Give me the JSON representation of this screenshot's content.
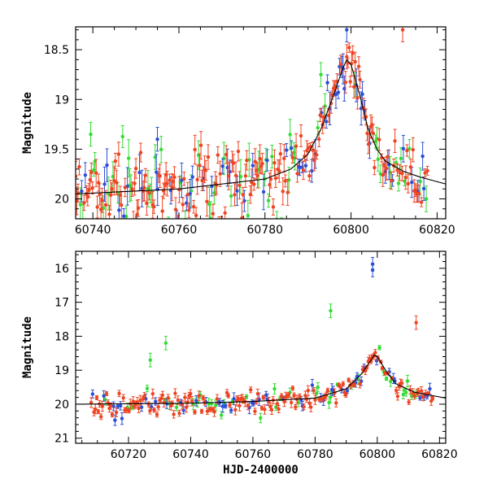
{
  "chart_data": [
    {
      "type": "scatter",
      "panel": "top",
      "title": "",
      "xlabel": "",
      "ylabel": "Magnitude",
      "xlim": [
        60736,
        60822
      ],
      "ylim": [
        20.2,
        18.27
      ],
      "y_inverted": true,
      "xticks": [
        60740,
        60760,
        60780,
        60800,
        60820
      ],
      "yticks": [
        18.5,
        19,
        19.5,
        20
      ],
      "ytick_labels": [
        "18.5",
        "19",
        "19.5",
        "20"
      ],
      "series": [
        {
          "color": "#2b4fd6",
          "style": "points with error bars"
        },
        {
          "color": "#33dd33",
          "style": "points with error bars"
        },
        {
          "color": "#ee4422",
          "style": "points with error bars"
        }
      ],
      "model": {
        "color": "#000000",
        "x": [
          60736,
          60760,
          60780,
          60786,
          60790,
          60793,
          60796,
          60798,
          60799,
          60800,
          60802,
          60804,
          60806,
          60808,
          60812,
          60816,
          60822
        ],
        "y": [
          19.95,
          19.9,
          19.8,
          19.7,
          19.55,
          19.3,
          18.95,
          18.7,
          18.6,
          18.65,
          18.95,
          19.3,
          19.5,
          19.62,
          19.72,
          19.78,
          19.85
        ]
      }
    },
    {
      "type": "scatter",
      "panel": "bottom",
      "title": "",
      "xlabel": "HJD-2400000",
      "ylabel": "Magnitude",
      "xlim": [
        60703,
        60822
      ],
      "ylim": [
        21.15,
        15.5
      ],
      "y_inverted": true,
      "xticks": [
        60720,
        60740,
        60760,
        60780,
        60800,
        60820
      ],
      "yticks": [
        16,
        17,
        18,
        19,
        20,
        21
      ],
      "ytick_labels": [
        "16",
        "17",
        "18",
        "19",
        "20",
        "21"
      ],
      "series": [
        {
          "color": "#2b4fd6",
          "style": "points with error bars"
        },
        {
          "color": "#33dd33",
          "style": "points with error bars"
        },
        {
          "color": "#ee4422",
          "style": "points with error bars"
        }
      ],
      "outliers": [
        {
          "series": 0,
          "x": 60798.5,
          "y": 16.05
        },
        {
          "series": 0,
          "x": 60798.5,
          "y": 15.88
        },
        {
          "series": 1,
          "x": 60727,
          "y": 18.7
        },
        {
          "series": 1,
          "x": 60732,
          "y": 18.2
        },
        {
          "series": 1,
          "x": 60785,
          "y": 17.25
        },
        {
          "series": 2,
          "x": 60812.5,
          "y": 17.6
        }
      ],
      "model": {
        "color": "#000000",
        "x": [
          60703,
          60740,
          60760,
          60780,
          60790,
          60795,
          60798,
          60799,
          60800,
          60803,
          60806,
          60812,
          60822
        ],
        "y": [
          20.0,
          19.97,
          19.92,
          19.82,
          19.55,
          19.1,
          18.7,
          18.55,
          18.6,
          19.05,
          19.4,
          19.65,
          19.82
        ]
      }
    }
  ]
}
